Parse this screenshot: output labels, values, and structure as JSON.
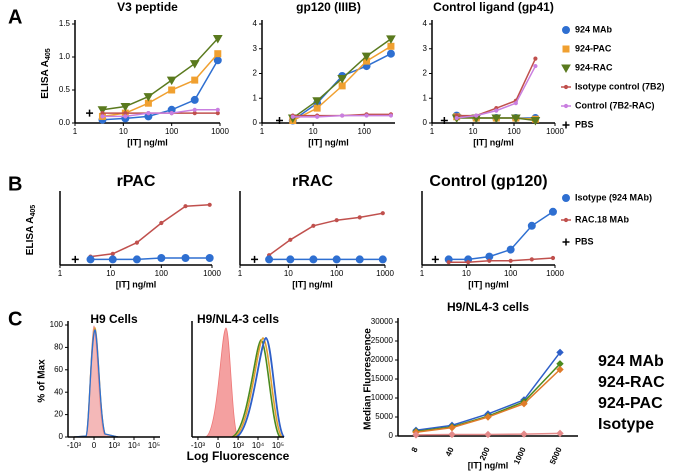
{
  "panel_labels": [
    "A",
    "B",
    "C"
  ],
  "chart_data": [
    {
      "type": "line",
      "title": "V3 peptide",
      "ylabel": {
        "text": "ELISA A",
        "sub": "405"
      },
      "xlabel": "[IT] ng/ml",
      "xscale": "log",
      "xlim": [
        1,
        1000
      ],
      "xticks": [
        1,
        10,
        100,
        1000
      ],
      "ylim": [
        0,
        1.5
      ],
      "yticks": [
        {
          "value": 0,
          "label": "0.0"
        },
        {
          "value": 0.5,
          "label": "0.5"
        },
        {
          "value": 1,
          "label": "1.0"
        },
        {
          "value": 1.5,
          "label": "1.5"
        }
      ],
      "x": [
        3.7,
        11,
        33,
        100,
        300,
        900
      ],
      "series": [
        {
          "color": "#2e6fd1",
          "marker": "circle",
          "values": [
            0.05,
            0.07,
            0.1,
            0.2,
            0.35,
            0.95
          ]
        },
        {
          "color": "#f0a030",
          "marker": "square",
          "values": [
            0.1,
            0.15,
            0.3,
            0.5,
            0.65,
            1.05
          ]
        },
        {
          "color": "#5a7a1e",
          "marker": "triangle",
          "values": [
            0.2,
            0.25,
            0.4,
            0.65,
            0.9,
            1.28
          ]
        },
        {
          "color": "#c0504d",
          "marker": "dot",
          "values": [
            0.15,
            0.15,
            0.15,
            0.15,
            0.15,
            0.15
          ]
        },
        {
          "color": "#c97fe0",
          "marker": "dot",
          "values": [
            0.1,
            0.1,
            0.15,
            0.15,
            0.2,
            0.2
          ]
        },
        {
          "color": "#000000",
          "marker": "plus",
          "x": [
            2
          ],
          "values": [
            0.15
          ]
        }
      ]
    },
    {
      "type": "line",
      "title": "gp120 (IIIB)",
      "xlabel": "[IT] ng/ml",
      "xscale": "log",
      "xlim": [
        1,
        400
      ],
      "xticks": [
        1,
        10,
        100
      ],
      "ylim": [
        0,
        4
      ],
      "yticks": [
        0,
        1,
        2,
        3,
        4
      ],
      "x": [
        4,
        12,
        37,
        111,
        333
      ],
      "series": [
        {
          "color": "#2e6fd1",
          "marker": "circle",
          "values": [
            0.1,
            0.8,
            1.9,
            2.3,
            2.8
          ]
        },
        {
          "color": "#f0a030",
          "marker": "square",
          "values": [
            0.1,
            0.6,
            1.5,
            2.5,
            3.1
          ]
        },
        {
          "color": "#5a7a1e",
          "marker": "triangle",
          "values": [
            0.2,
            0.9,
            1.8,
            2.7,
            3.4
          ]
        },
        {
          "color": "#c0504d",
          "marker": "dot",
          "values": [
            0.3,
            0.3,
            0.3,
            0.35,
            0.35
          ]
        },
        {
          "color": "#c97fe0",
          "marker": "dot",
          "values": [
            0.25,
            0.25,
            0.3,
            0.3,
            0.3
          ]
        },
        {
          "color": "#000000",
          "marker": "plus",
          "x": [
            2.2
          ],
          "values": [
            0.1
          ]
        }
      ]
    },
    {
      "type": "line",
      "title": "Control ligand (gp41)",
      "xlabel": "[IT] ng/ml",
      "xscale": "log",
      "xlim": [
        1,
        1000
      ],
      "xticks": [
        1,
        10,
        100,
        1000
      ],
      "ylim": [
        0,
        4
      ],
      "yticks": [
        0,
        1,
        2,
        3,
        4
      ],
      "legend": "right",
      "x": [
        4,
        12,
        37,
        111,
        333
      ],
      "series": [
        {
          "name": "924 MAb",
          "color": "#2e6fd1",
          "marker": "circle",
          "values": [
            0.3,
            0.2,
            0.2,
            0.2,
            0.2
          ]
        },
        {
          "name": "924-PAC",
          "color": "#f0a030",
          "marker": "square",
          "values": [
            0.25,
            0.2,
            0.2,
            0.2,
            0.15
          ]
        },
        {
          "name": "924-RAC",
          "color": "#5a7a1e",
          "marker": "triangle",
          "values": [
            0.2,
            0.2,
            0.2,
            0.2,
            0.1
          ]
        },
        {
          "name": "Isotype control (7B2)",
          "color": "#c0504d",
          "marker": "dot",
          "values": [
            0.3,
            0.3,
            0.6,
            0.9,
            2.6
          ]
        },
        {
          "name": "Control (7B2-RAC)",
          "color": "#c97fe0",
          "marker": "dot",
          "values": [
            0.2,
            0.3,
            0.5,
            0.8,
            2.3
          ]
        },
        {
          "name": "PBS",
          "color": "#000000",
          "marker": "plus",
          "x": [
            2
          ],
          "values": [
            0.1
          ]
        }
      ]
    },
    {
      "type": "line",
      "title": "rPAC",
      "ylabel": {
        "text": "ELISA A",
        "sub": "405"
      },
      "xlabel": "[IT] ng/ml",
      "xscale": "log",
      "xlim": [
        1,
        1000
      ],
      "xticks": [
        1,
        10,
        100,
        1000
      ],
      "ylim": [
        0,
        2.5
      ],
      "x": [
        4,
        11,
        33,
        100,
        300,
        900
      ],
      "series": [
        {
          "color": "#c0504d",
          "marker": "dot",
          "values": [
            0.3,
            0.4,
            0.8,
            1.5,
            2.1,
            2.15
          ]
        },
        {
          "color": "#2e6fd1",
          "marker": "circle",
          "values": [
            0.2,
            0.2,
            0.2,
            0.25,
            0.25,
            0.25
          ]
        },
        {
          "color": "#000000",
          "marker": "plus",
          "x": [
            2
          ],
          "values": [
            0.2
          ]
        }
      ]
    },
    {
      "type": "line",
      "title": "rRAC",
      "xlabel": "[IT] ng/ml",
      "xscale": "log",
      "xlim": [
        1,
        1000
      ],
      "xticks": [
        1,
        10,
        100,
        1000
      ],
      "ylim": [
        0,
        2.5
      ],
      "x": [
        4,
        11,
        33,
        100,
        300,
        900
      ],
      "series": [
        {
          "color": "#c0504d",
          "marker": "dot",
          "values": [
            0.35,
            0.9,
            1.4,
            1.6,
            1.7,
            1.85
          ]
        },
        {
          "color": "#2e6fd1",
          "marker": "circle",
          "values": [
            0.2,
            0.2,
            0.2,
            0.2,
            0.2,
            0.2
          ]
        },
        {
          "color": "#000000",
          "marker": "plus",
          "x": [
            2
          ],
          "values": [
            0.2
          ]
        }
      ]
    },
    {
      "type": "line",
      "title": "Control (gp120)",
      "xlabel": "[IT] ng/ml",
      "xscale": "log",
      "xlim": [
        1,
        1000
      ],
      "xticks": [
        1,
        10,
        100,
        1000
      ],
      "ylim": [
        0,
        2.5
      ],
      "legend": "right",
      "x": [
        4,
        11,
        33,
        100,
        300,
        900
      ],
      "series": [
        {
          "name": "Isotype (924 MAb)",
          "color": "#2e6fd1",
          "marker": "circle",
          "values": [
            0.2,
            0.2,
            0.3,
            0.55,
            1.4,
            1.9
          ]
        },
        {
          "name": "RAC.18 MAb",
          "color": "#c0504d",
          "marker": "dot",
          "values": [
            0.1,
            0.1,
            0.15,
            0.15,
            0.2,
            0.25
          ]
        },
        {
          "name": "PBS",
          "color": "#000000",
          "marker": "plus",
          "x": [
            2
          ],
          "values": [
            0.2
          ]
        }
      ]
    },
    {
      "type": "density",
      "title": "H9 Cells",
      "ylabel": "% of Max",
      "xlim": [
        -2000,
        200000
      ],
      "ylim": [
        0,
        100
      ],
      "yticks": [
        0,
        20,
        40,
        60,
        80,
        100
      ],
      "xticks": [
        {
          "value": -1000,
          "label": "-10³"
        },
        0,
        {
          "value": 1000,
          "label": "10³"
        },
        {
          "value": 10000,
          "label": "10⁴"
        },
        {
          "value": 100000,
          "label": "10⁵"
        }
      ]
    },
    {
      "type": "density",
      "title": "H9/NL4-3 cells",
      "xlabel": "Log Fluorescence",
      "xlim": [
        -2000,
        200000
      ],
      "ylim": [
        0,
        100
      ],
      "xticks": [
        {
          "value": -1000,
          "label": "-10³"
        },
        0,
        {
          "value": 1000,
          "label": "10³"
        },
        {
          "value": 10000,
          "label": "10⁴"
        },
        {
          "value": 100000,
          "label": "10⁵"
        }
      ]
    },
    {
      "type": "line",
      "title": "H9/NL4-3 cells",
      "ylabel": "Median Fluorescence",
      "xlabel": "[IT] ng/ml",
      "legend": "text",
      "categories": [
        "8",
        "40",
        "200",
        "1000",
        "5000"
      ],
      "ylim": [
        0,
        30000
      ],
      "yticks": [
        0,
        5000,
        10000,
        15000,
        20000,
        25000,
        30000
      ],
      "series": [
        {
          "name": "924 MAb",
          "color": "#2e5fc8",
          "marker": "diamond",
          "values": [
            1500,
            2800,
            5800,
            9500,
            22000
          ]
        },
        {
          "name": "924-RAC",
          "color": "#4a8a1e",
          "marker": "diamond",
          "values": [
            1200,
            2400,
            5200,
            9000,
            19000
          ]
        },
        {
          "name": "924-PAC",
          "color": "#e07b2a",
          "marker": "diamond",
          "values": [
            1000,
            2200,
            5000,
            8500,
            17500
          ]
        },
        {
          "name": "Isotype",
          "color": "#e48a8a",
          "marker": "diamond",
          "values": [
            300,
            400,
            400,
            500,
            700
          ]
        }
      ]
    }
  ]
}
